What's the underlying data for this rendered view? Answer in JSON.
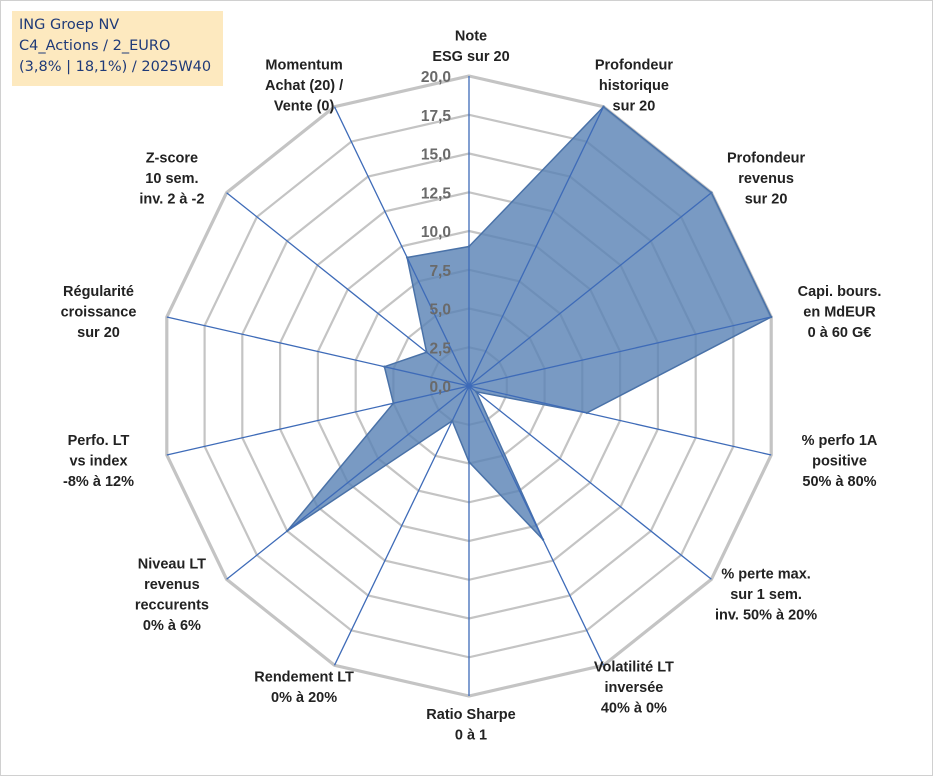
{
  "info_box": {
    "line1": "ING Groep NV",
    "line2": "C4_Actions / 2_EURO",
    "line3": "(3,8% | 18,1%) / 2025W40"
  },
  "colors": {
    "fill": "#5b84b6",
    "stroke": "#4a72a8",
    "grid": "#c4c4c4",
    "spoke": "#3e6bb8",
    "info_bg": "#fde9bf",
    "info_text": "#1f3a78"
  },
  "chart_data": {
    "type": "radar",
    "range": [
      0,
      20
    ],
    "tick_labels": [
      "0,0",
      "2,5",
      "5,0",
      "7,5",
      "10,0",
      "12,5",
      "15,0",
      "17,5",
      "20,0"
    ],
    "axes": [
      {
        "label": [
          "Note",
          "ESG sur 20"
        ],
        "value": 9.0
      },
      {
        "label": [
          "Profondeur",
          "historique",
          "sur 20"
        ],
        "value": 20.0
      },
      {
        "label": [
          "Profondeur",
          "revenus",
          "sur 20"
        ],
        "value": 20.0
      },
      {
        "label": [
          "Capi. bours.",
          "en MdEUR",
          "0 à 60 G€"
        ],
        "value": 20.0
      },
      {
        "label": [
          "% perfo 1A",
          "positive",
          "50% à 80%"
        ],
        "value": 7.8
      },
      {
        "label": [
          "% perte max.",
          "sur 1 sem.",
          "inv. 50% à 20%"
        ],
        "value": 0.6
      },
      {
        "label": [
          "Volatilité LT",
          "inversée",
          "40% à 0%"
        ],
        "value": 11.0
      },
      {
        "label": [
          "Ratio Sharpe",
          "0 à 1"
        ],
        "value": 4.9
      },
      {
        "label": [
          "Rendement LT",
          "0% à 20%"
        ],
        "value": 2.5
      },
      {
        "label": [
          "Niveau LT",
          "revenus",
          "reccurents",
          "0% à 6%"
        ],
        "value": 15.0
      },
      {
        "label": [
          "Perfo. LT",
          "vs index",
          "-8% à 12%"
        ],
        "value": 5.0
      },
      {
        "label": [
          "Régularité",
          "croissance",
          "sur 20"
        ],
        "value": 5.6
      },
      {
        "label": [
          "Z-score",
          "10 sem.",
          "inv. 2 à -2"
        ],
        "value": 3.5
      },
      {
        "label": [
          "Momentum",
          "Achat (20) /",
          "Vente (0)"
        ],
        "value": 9.2
      }
    ]
  }
}
